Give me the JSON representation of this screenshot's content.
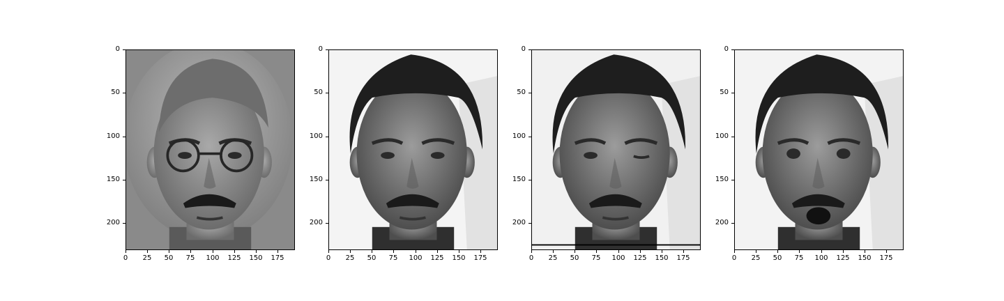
{
  "figure": {
    "panels": [
      {
        "subject": "man-with-glasses-and-mustache",
        "tone": "washed-grey"
      },
      {
        "subject": "man-with-mustache-neutral",
        "tone": "normal"
      },
      {
        "subject": "man-with-mustache-winking",
        "tone": "normal"
      },
      {
        "subject": "man-with-mustache-surprised",
        "tone": "normal"
      }
    ],
    "x_ticks": [
      "0",
      "25",
      "50",
      "75",
      "100",
      "125",
      "150",
      "175"
    ],
    "x_tick_values": [
      0,
      25,
      50,
      75,
      100,
      125,
      150,
      175
    ],
    "y_ticks": [
      "0",
      "50",
      "100",
      "150",
      "200"
    ],
    "y_tick_values": [
      0,
      50,
      100,
      150,
      200
    ],
    "x_max": 195,
    "y_max": 231
  },
  "colors": {
    "axis": "#000000",
    "background": "#ffffff"
  }
}
